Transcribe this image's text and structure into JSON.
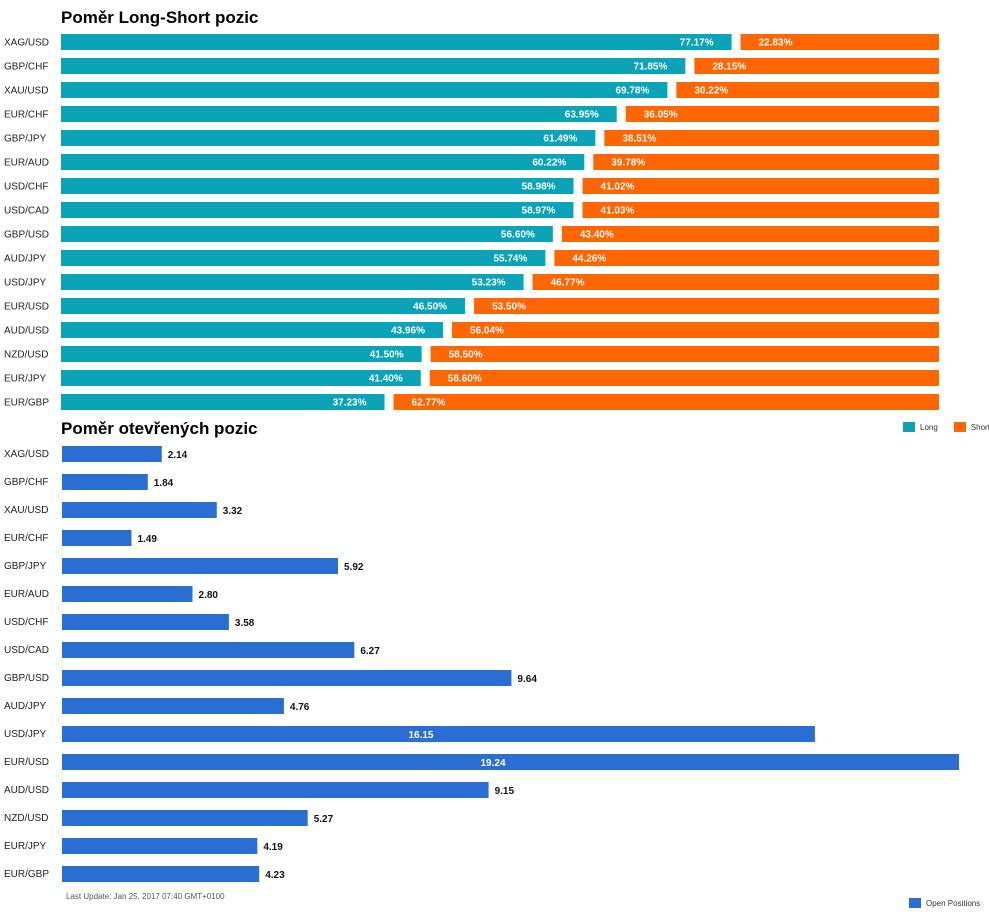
{
  "colors": {
    "long": "#0aa3b8",
    "short": "#ff6600",
    "open": "#2a6ed4"
  },
  "chart_data": [
    {
      "type": "bar",
      "title": "Poměr Long-Short pozic",
      "stacked": true,
      "orientation": "horizontal",
      "categories": [
        "XAG/USD",
        "GBP/CHF",
        "XAU/USD",
        "EUR/CHF",
        "GBP/JPY",
        "EUR/AUD",
        "USD/CHF",
        "USD/CAD",
        "GBP/USD",
        "AUD/JPY",
        "USD/JPY",
        "EUR/USD",
        "AUD/USD",
        "NZD/USD",
        "EUR/JPY",
        "EUR/GBP"
      ],
      "series": [
        {
          "name": "Long",
          "values": [
            77.17,
            71.85,
            69.78,
            63.95,
            61.49,
            60.22,
            58.98,
            58.97,
            56.6,
            55.74,
            53.23,
            46.5,
            43.96,
            41.5,
            41.4,
            37.23
          ],
          "labels": [
            "77.17%",
            "71.85%",
            "69.78%",
            "63.95%",
            "61.49%",
            "60.22%",
            "58.98%",
            "58.97%",
            "56.60%",
            "55.74%",
            "53.23%",
            "46.50%",
            "43.96%",
            "41.50%",
            "41.40%",
            "37.23%"
          ]
        },
        {
          "name": "Short",
          "values": [
            22.83,
            28.15,
            30.22,
            36.05,
            38.51,
            39.78,
            41.02,
            41.03,
            43.4,
            44.26,
            46.77,
            53.5,
            56.04,
            58.5,
            58.6,
            62.77
          ],
          "labels": [
            "22.83%",
            "28.15%",
            "30.22%",
            "36.05%",
            "38.51%",
            "39.78%",
            "41.02%",
            "41.03%",
            "43.40%",
            "44.26%",
            "46.77%",
            "53.50%",
            "56.04%",
            "58.50%",
            "58.60%",
            "62.77%"
          ]
        }
      ],
      "xlim": [
        0,
        100
      ],
      "legend": "top-right",
      "grid": false
    },
    {
      "type": "bar",
      "title": "Poměr otevřených pozic",
      "orientation": "horizontal",
      "categories": [
        "XAG/USD",
        "GBP/CHF",
        "XAU/USD",
        "EUR/CHF",
        "GBP/JPY",
        "EUR/AUD",
        "USD/CHF",
        "USD/CAD",
        "GBP/USD",
        "AUD/JPY",
        "USD/JPY",
        "EUR/USD",
        "AUD/USD",
        "NZD/USD",
        "EUR/JPY",
        "EUR/GBP"
      ],
      "series": [
        {
          "name": "Open Positions",
          "values": [
            2.14,
            1.84,
            3.32,
            1.49,
            5.92,
            2.8,
            3.58,
            6.27,
            9.64,
            4.76,
            16.15,
            19.24,
            9.15,
            5.27,
            4.19,
            4.23
          ],
          "labels": [
            "2.14",
            "1.84",
            "3.32",
            "1.49",
            "5.92",
            "2.80",
            "3.58",
            "6.27",
            "9.64",
            "4.76",
            "16.15",
            "19.24",
            "9.15",
            "5.27",
            "4.19",
            "4.23"
          ]
        }
      ],
      "xlim": [
        0,
        19.24
      ],
      "legend": "bottom-right",
      "grid": false
    }
  ],
  "footer": {
    "last_update": "Last Update: Jan 25, 2017 07:40 GMT+0100"
  }
}
